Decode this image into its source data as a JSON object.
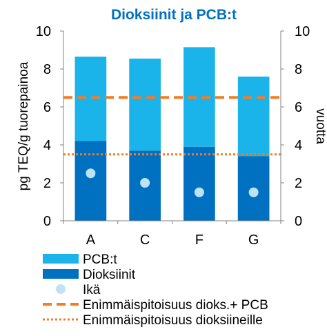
{
  "chart_data": {
    "type": "bar",
    "stacked": true,
    "title": "Dioksiinit ja PCB:t",
    "ylabel": "pg TEQ/g tuorepainoa",
    "y2label": "vuotta",
    "ylim": [
      0,
      10
    ],
    "y2lim": [
      0,
      10
    ],
    "yticks": [
      "0",
      "2",
      "4",
      "6",
      "8",
      "10"
    ],
    "y2ticks": [
      "0",
      "2",
      "4",
      "6",
      "8",
      "10"
    ],
    "categories": [
      "A",
      "C",
      "F",
      "G"
    ],
    "series": [
      {
        "name": "Dioksiinit",
        "kind": "bar",
        "color": "#0070c0",
        "values": [
          4.2,
          3.7,
          3.9,
          3.4
        ]
      },
      {
        "name": "PCB:t",
        "kind": "bar",
        "color": "#1ab3ea",
        "values": [
          4.45,
          4.85,
          5.25,
          4.2
        ]
      },
      {
        "name": "Ikä",
        "kind": "scatter",
        "axis": "right",
        "color": "#bde3f5",
        "values": [
          2.5,
          2.0,
          1.5,
          1.5
        ]
      }
    ],
    "reference_lines": [
      {
        "name": "Enimmäispitoisuus dioks.+ PCB",
        "value": 6.5,
        "style": "dashed",
        "color": "#f07d28"
      },
      {
        "name": "Enimmäispitoisuus dioksiineille",
        "value": 3.5,
        "style": "dotted",
        "color": "#f07d28"
      }
    ],
    "legend": {
      "placement": "bottom",
      "items": [
        "PCB:t",
        "Dioksiinit",
        "Ikä",
        "Enimmäispitoisuus dioks.+ PCB",
        "Enimmäispitoisuus dioksiineille"
      ]
    },
    "title_color": "#0070c0"
  }
}
